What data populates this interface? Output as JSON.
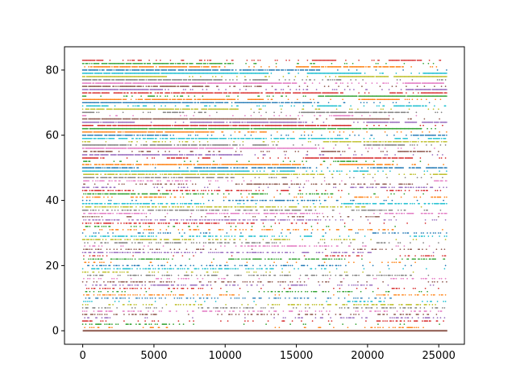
{
  "chart_data": {
    "type": "scatter",
    "title": "",
    "xlabel": "",
    "ylabel": "",
    "xlim": [
      -1280,
      26800
    ],
    "ylim": [
      -4.15,
      87.15
    ],
    "x_ticks": [
      0,
      5000,
      10000,
      15000,
      20000,
      25000
    ],
    "x_tick_labels": [
      "0",
      "5000",
      "10000",
      "15000",
      "20000",
      "25000"
    ],
    "y_ticks": [
      0,
      20,
      40,
      60,
      80
    ],
    "y_tick_labels": [
      "0",
      "20",
      "40",
      "60",
      "80"
    ],
    "grid": false,
    "legend": "none",
    "series_description": "84 horizontal point series, one per integer level y = 0..83, each spanning roughly x = 0 to 25600 with varying point density; level 0 is continuous",
    "levels": {
      "min": 0,
      "max": 83
    },
    "x_extent": [
      0,
      25600
    ],
    "palette": [
      "#1f77b4",
      "#ff7f0e",
      "#2ca02c",
      "#d62728",
      "#9467bd",
      "#8c564b",
      "#e377c2",
      "#7f7f7f",
      "#bcbd22",
      "#17becf"
    ]
  }
}
